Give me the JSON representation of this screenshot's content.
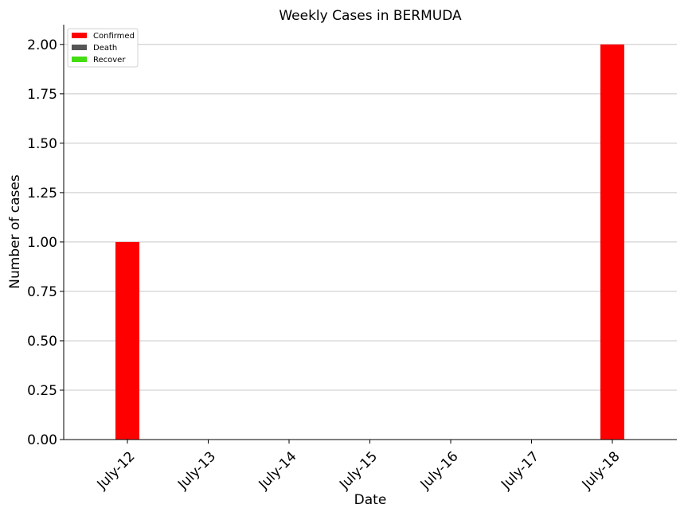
{
  "chart_data": {
    "type": "bar",
    "title": "Weekly Cases in BERMUDA",
    "xlabel": "Date",
    "ylabel": "Number of cases",
    "categories": [
      "July-12",
      "July-13",
      "July-14",
      "July-15",
      "July-16",
      "July-17",
      "July-18"
    ],
    "series": [
      {
        "name": "Confirmed",
        "color": "#ff0000",
        "values": [
          1,
          0,
          0,
          0,
          0,
          0,
          2
        ]
      },
      {
        "name": "Death",
        "color": "#555555",
        "values": [
          0,
          0,
          0,
          0,
          0,
          0,
          0
        ]
      },
      {
        "name": "Recover",
        "color": "#44dd11",
        "values": [
          0,
          0,
          0,
          0,
          0,
          0,
          0
        ]
      }
    ],
    "ylim": [
      0,
      2.1
    ],
    "yticks": [
      "0.00",
      "0.25",
      "0.50",
      "0.75",
      "1.00",
      "1.25",
      "1.50",
      "1.75",
      "2.00"
    ],
    "grid": "horizontal",
    "legend_position": "top-left"
  }
}
